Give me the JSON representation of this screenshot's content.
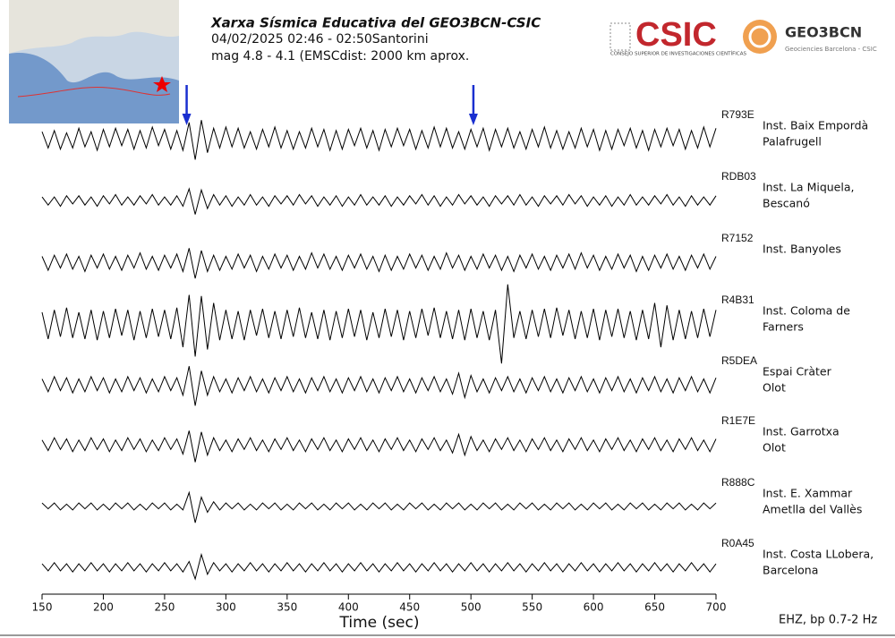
{
  "chart_data": {
    "type": "line",
    "title": "Xarxa Sísmica Educativa del GEO3BCN-CSIC",
    "subtitle": [
      "04/02/2025 02:46 - 02:50Santorini",
      "mag 4.8 - 4.1  (EMSCdist: 2000 km aprox."
    ],
    "logos": {
      "csic": "CSIC",
      "csic_caption": "CONSEJO SUPERIOR DE INVESTIGACIONES CIENTÍFICAS",
      "geo": "GEO3BCN",
      "geo_caption": "Geociencies Barcelona - CSIC"
    },
    "xlabel": "Time (sec)",
    "footer": "EHZ, bp 0.7-2 Hz",
    "xlim": [
      150,
      700
    ],
    "xticks": [
      150,
      200,
      250,
      300,
      350,
      400,
      450,
      500,
      550,
      600,
      650,
      700
    ],
    "arrows": [
      268,
      502
    ],
    "arrow_color": "#1a2fd0",
    "x": [
      150,
      155,
      160,
      165,
      170,
      175,
      180,
      185,
      190,
      195,
      200,
      205,
      210,
      215,
      220,
      225,
      230,
      235,
      240,
      245,
      250,
      255,
      260,
      265,
      270,
      275,
      280,
      285,
      290,
      295,
      300,
      305,
      310,
      315,
      320,
      325,
      330,
      335,
      340,
      345,
      350,
      355,
      360,
      365,
      370,
      375,
      380,
      385,
      390,
      395,
      400,
      405,
      410,
      415,
      420,
      425,
      430,
      435,
      440,
      445,
      450,
      455,
      460,
      465,
      470,
      475,
      480,
      485,
      490,
      495,
      500,
      505,
      510,
      515,
      520,
      525,
      530,
      535,
      540,
      545,
      550,
      555,
      560,
      565,
      570,
      575,
      580,
      585,
      590,
      595,
      600,
      605,
      610,
      615,
      620,
      625,
      630,
      635,
      640,
      645,
      650,
      655,
      660,
      665,
      670,
      675,
      680,
      685,
      690,
      695,
      700
    ],
    "series": [
      {
        "name": "R793E",
        "label": [
          "Inst. Baix Empordà",
          "Palafrugell"
        ],
        "color": "#000000",
        "values": [
          6,
          -8,
          7,
          -9,
          5,
          -8,
          9,
          -7,
          6,
          -10,
          8,
          -7,
          9,
          -6,
          8,
          -9,
          7,
          -8,
          10,
          -6,
          8,
          -9,
          7,
          -10,
          14,
          -18,
          16,
          -12,
          9,
          -8,
          10,
          -7,
          9,
          -8,
          6,
          -9,
          8,
          -7,
          10,
          -8,
          7,
          -9,
          6,
          -8,
          9,
          -7,
          8,
          -10,
          7,
          -9,
          8,
          -6,
          9,
          -8,
          7,
          -10,
          8,
          -7,
          9,
          -6,
          8,
          -9,
          7,
          -8,
          10,
          -7,
          9,
          -8,
          6,
          -9,
          8,
          -7,
          9,
          -10,
          8,
          -7,
          9,
          -8,
          6,
          -9,
          8,
          -7,
          10,
          -8,
          7,
          -9,
          6,
          -8,
          9,
          -7,
          8,
          -10,
          7,
          -9,
          8,
          -6,
          9,
          -8,
          7,
          -10,
          8,
          -7,
          9,
          -6,
          8,
          -9,
          7,
          -8,
          10,
          -7,
          9
        ]
      },
      {
        "name": "RDB03",
        "label": [
          "Inst. La Miquela,",
          "Bescanó"
        ],
        "color": "#000000",
        "values": [
          3,
          -4,
          3,
          -5,
          4,
          -3,
          4,
          -4,
          3,
          -5,
          4,
          -3,
          5,
          -4,
          3,
          -4,
          4,
          -3,
          5,
          -4,
          3,
          -4,
          4,
          -5,
          10,
          -12,
          9,
          -7,
          5,
          -4,
          4,
          -5,
          3,
          -4,
          5,
          -4,
          3,
          -5,
          4,
          -3,
          4,
          -4,
          5,
          -3,
          4,
          -5,
          3,
          -4,
          4,
          -5,
          3,
          -4,
          5,
          -4,
          3,
          -4,
          4,
          -5,
          3,
          -4,
          4,
          -3,
          5,
          -4,
          4,
          -5,
          3,
          -4,
          5,
          -3,
          4,
          -4,
          3,
          -5,
          4,
          -3,
          4,
          -4,
          5,
          -4,
          3,
          -5,
          4,
          -3,
          4,
          -4,
          5,
          -3,
          4,
          -5,
          3,
          -4,
          4,
          -5,
          3,
          -4,
          5,
          -4,
          3,
          -4,
          4,
          -3,
          5,
          -4,
          3,
          -5,
          4,
          -4,
          3,
          -4,
          4
        ]
      },
      {
        "name": "R7152",
        "label": [
          "Inst. Banyoles"
        ],
        "color": "#000000",
        "values": [
          5,
          -7,
          6,
          -5,
          7,
          -6,
          5,
          -8,
          6,
          -5,
          7,
          -6,
          5,
          -7,
          6,
          -5,
          8,
          -6,
          5,
          -7,
          6,
          -5,
          7,
          -8,
          12,
          -14,
          10,
          -8,
          6,
          -7,
          5,
          -6,
          7,
          -5,
          6,
          -8,
          5,
          -6,
          7,
          -5,
          6,
          -7,
          5,
          -6,
          8,
          -5,
          7,
          -6,
          5,
          -7,
          6,
          -5,
          7,
          -6,
          5,
          -8,
          6,
          -7,
          5,
          -6,
          7,
          -5,
          6,
          -7,
          5,
          -6,
          8,
          -5,
          6,
          -7,
          5,
          -6,
          7,
          -5,
          6,
          -7,
          5,
          -8,
          6,
          -5,
          7,
          -6,
          5,
          -7,
          6,
          -5,
          7,
          -6,
          8,
          -5,
          6,
          -7,
          5,
          -6,
          7,
          -5,
          6,
          -8,
          5,
          -7,
          6,
          -5,
          7,
          -6,
          5,
          -7,
          6,
          -5,
          7,
          -6,
          5
        ]
      },
      {
        "name": "R4B31",
        "label": [
          "Inst. Coloma de",
          "Farners"
        ],
        "color": "#000000",
        "values": [
          10,
          -13,
          12,
          -11,
          14,
          -12,
          10,
          -13,
          12,
          -14,
          11,
          -12,
          13,
          -10,
          12,
          -14,
          11,
          -12,
          13,
          -11,
          12,
          -13,
          14,
          -20,
          25,
          -28,
          24,
          -22,
          18,
          -14,
          12,
          -13,
          11,
          -14,
          12,
          -10,
          13,
          -12,
          11,
          -13,
          12,
          -11,
          14,
          -12,
          10,
          -13,
          12,
          -14,
          11,
          -12,
          13,
          -11,
          12,
          -14,
          10,
          -12,
          13,
          -11,
          12,
          -14,
          11,
          -12,
          13,
          -10,
          14,
          -12,
          11,
          -13,
          12,
          -14,
          13,
          -12,
          11,
          -14,
          12,
          -34,
          34,
          -12,
          11,
          -13,
          12,
          -11,
          13,
          -12,
          14,
          -10,
          12,
          -13,
          11,
          -12,
          13,
          -14,
          12,
          -11,
          13,
          -12,
          11,
          -14,
          12,
          -13,
          18,
          -20,
          16,
          -14,
          12,
          -13,
          11,
          -12,
          13,
          -11,
          12
        ]
      },
      {
        "name": "R5DEA",
        "label": [
          "Espai Cràter",
          "Olot"
        ],
        "color": "#000000",
        "values": [
          5,
          -6,
          7,
          -5,
          6,
          -7,
          5,
          -6,
          7,
          -5,
          6,
          -7,
          5,
          -6,
          7,
          -5,
          6,
          -7,
          5,
          -6,
          7,
          -5,
          6,
          -9,
          16,
          -18,
          12,
          -9,
          7,
          -6,
          5,
          -7,
          6,
          -5,
          7,
          -6,
          5,
          -7,
          6,
          -5,
          7,
          -6,
          5,
          -7,
          6,
          -5,
          7,
          -6,
          5,
          -7,
          6,
          -5,
          7,
          -6,
          5,
          -7,
          6,
          -5,
          7,
          -6,
          5,
          -7,
          6,
          -5,
          7,
          -6,
          5,
          -8,
          10,
          -11,
          8,
          -6,
          5,
          -7,
          6,
          -5,
          7,
          -6,
          5,
          -7,
          6,
          -5,
          7,
          -6,
          5,
          -7,
          6,
          -5,
          7,
          -6,
          5,
          -7,
          6,
          -5,
          7,
          -6,
          5,
          -7,
          6,
          -5,
          7,
          -6,
          5,
          -7,
          6,
          -5,
          7,
          -6,
          5,
          -7,
          6
        ]
      },
      {
        "name": "R1E7E",
        "label": [
          "Inst. Garrotxa",
          "Olot"
        ],
        "color": "#000000",
        "values": [
          4,
          -5,
          6,
          -4,
          5,
          -6,
          4,
          -5,
          6,
          -4,
          5,
          -6,
          4,
          -5,
          6,
          -4,
          5,
          -6,
          4,
          -5,
          6,
          -4,
          5,
          -8,
          12,
          -15,
          11,
          -9,
          6,
          -5,
          4,
          -6,
          5,
          -4,
          6,
          -5,
          4,
          -6,
          5,
          -4,
          6,
          -5,
          4,
          -6,
          5,
          -4,
          6,
          -5,
          4,
          -6,
          5,
          -4,
          6,
          -5,
          4,
          -6,
          5,
          -4,
          6,
          -5,
          4,
          -6,
          5,
          -4,
          6,
          -5,
          4,
          -7,
          9,
          -9,
          7,
          -5,
          4,
          -6,
          5,
          -4,
          6,
          -5,
          4,
          -6,
          5,
          -4,
          6,
          -5,
          4,
          -6,
          5,
          -4,
          6,
          -5,
          4,
          -6,
          5,
          -4,
          6,
          -5,
          4,
          -6,
          5,
          -4,
          6,
          -5,
          4,
          -6,
          5,
          -4,
          6,
          -5,
          4,
          -6,
          5
        ]
      },
      {
        "name": "R888C",
        "label": [
          "Inst. E. Xammar",
          "Ametlla del Vallès"
        ],
        "color": "#000000",
        "values": [
          3,
          -2,
          3,
          -3,
          2,
          -3,
          3,
          -2,
          3,
          -3,
          2,
          -3,
          3,
          -2,
          3,
          -3,
          2,
          -3,
          3,
          -2,
          3,
          -3,
          2,
          -3,
          12,
          -14,
          8,
          -5,
          4,
          -3,
          3,
          -2,
          3,
          -3,
          2,
          -3,
          3,
          -2,
          3,
          -3,
          2,
          -3,
          3,
          -2,
          3,
          -3,
          2,
          -3,
          3,
          -2,
          3,
          -3,
          2,
          -3,
          3,
          -2,
          3,
          -3,
          2,
          -3,
          3,
          -2,
          3,
          -3,
          2,
          -3,
          3,
          -2,
          3,
          -3,
          2,
          -3,
          3,
          -2,
          3,
          -3,
          2,
          -3,
          3,
          -2,
          3,
          -3,
          2,
          -3,
          3,
          -2,
          3,
          -3,
          2,
          -3,
          3,
          -2,
          3,
          -3,
          2,
          -3,
          3,
          -2,
          3,
          -3,
          2,
          -3,
          3,
          -2,
          3,
          -3,
          2,
          -3,
          3,
          -2,
          3
        ]
      },
      {
        "name": "R0A45",
        "label": [
          "Inst. Costa LLobera,",
          "Barcelona"
        ],
        "color": "#000000",
        "values": [
          3,
          -3,
          4,
          -3,
          3,
          -4,
          3,
          -3,
          4,
          -3,
          3,
          -4,
          3,
          -3,
          4,
          -3,
          3,
          -4,
          3,
          -3,
          4,
          -3,
          3,
          -4,
          5,
          -10,
          11,
          -6,
          4,
          -3,
          3,
          -4,
          3,
          -3,
          4,
          -3,
          3,
          -4,
          3,
          -3,
          4,
          -3,
          3,
          -4,
          3,
          -3,
          4,
          -3,
          3,
          -4,
          3,
          -3,
          4,
          -3,
          3,
          -4,
          3,
          -3,
          4,
          -3,
          3,
          -4,
          3,
          -3,
          4,
          -3,
          3,
          -4,
          3,
          -3,
          4,
          -3,
          3,
          -4,
          3,
          -3,
          4,
          -3,
          3,
          -4,
          3,
          -3,
          4,
          -3,
          3,
          -4,
          3,
          -3,
          4,
          -3,
          3,
          -4,
          3,
          -3,
          4,
          -3,
          3,
          -4,
          3,
          -3,
          4,
          -3,
          3,
          -4,
          3,
          -3,
          4,
          -3,
          3,
          -4,
          3
        ]
      }
    ]
  }
}
